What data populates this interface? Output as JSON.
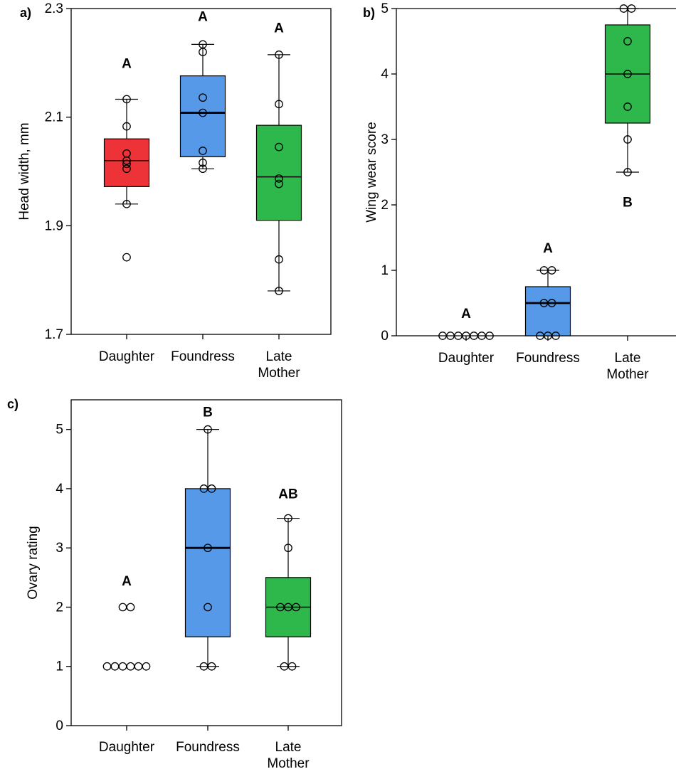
{
  "colors": {
    "daughter": "#ee3338",
    "foundress": "#5599e8",
    "late_mother": "#2eb84b"
  },
  "chart_data": [
    {
      "panel": "a)",
      "type": "boxplot",
      "ylabel": "Head width, mm",
      "ylim": [
        1.7,
        2.3
      ],
      "yticks": [
        "1.7",
        "1.9",
        "2.1",
        "2.3"
      ],
      "categories": [
        {
          "label": [
            "Daughter"
          ],
          "color": "#ee3338",
          "box": {
            "whisker_low": 1.94,
            "q1": 1.972,
            "median": 2.02,
            "q3": 2.06,
            "whisker_high": 2.133
          },
          "points": [
            1.842,
            1.94,
            2.005,
            2.014,
            2.02,
            2.033,
            2.083,
            2.133
          ],
          "letter": "A",
          "letter_value": 2.2
        },
        {
          "label": [
            "Foundress"
          ],
          "color": "#5599e8",
          "box": {
            "whisker_low": 2.005,
            "q1": 2.027,
            "median": 2.108,
            "q3": 2.176,
            "whisker_high": 2.234
          },
          "points": [
            2.005,
            2.016,
            2.038,
            2.108,
            2.136,
            2.22,
            2.234
          ],
          "letter": "A",
          "letter_value": 2.286
        },
        {
          "label": [
            "Late",
            "Mother"
          ],
          "color": "#2eb84b",
          "box": {
            "whisker_low": 1.78,
            "q1": 1.91,
            "median": 1.99,
            "q3": 2.085,
            "whisker_high": 2.215
          },
          "points": [
            1.78,
            1.838,
            1.977,
            1.987,
            2.045,
            2.124,
            2.215
          ],
          "letter": "A",
          "letter_value": 2.265
        }
      ]
    },
    {
      "panel": "b)",
      "type": "boxplot",
      "ylabel": "Wing wear score",
      "ylim": [
        0,
        5
      ],
      "yticks": [
        "0",
        "1",
        "2",
        "3",
        "4",
        "5"
      ],
      "categories": [
        {
          "label": [
            "Daughter"
          ],
          "color": "#ee3338",
          "box": null,
          "points": [
            0,
            0,
            0,
            0,
            0,
            0,
            0
          ],
          "letter": "A",
          "letter_value": 0.35
        },
        {
          "label": [
            "Foundress"
          ],
          "color": "#5599e8",
          "box": {
            "whisker_low": 0,
            "q1": 0,
            "median": 0.5,
            "q3": 0.75,
            "whisker_high": 1
          },
          "points": [
            0,
            0,
            0,
            0.5,
            0.5,
            1,
            1
          ],
          "letter": "A",
          "letter_value": 1.35
        },
        {
          "label": [
            "Late",
            "Mother"
          ],
          "color": "#2eb84b",
          "box": {
            "whisker_low": 2.5,
            "q1": 3.25,
            "median": 4,
            "q3": 4.75,
            "whisker_high": 5
          },
          "points": [
            2.5,
            3,
            3.5,
            4,
            4.5,
            5,
            5
          ],
          "letter": "B",
          "letter_value": 2.05
        }
      ]
    },
    {
      "panel": "c)",
      "type": "boxplot",
      "ylabel": "Ovary rating",
      "ylim": [
        0,
        5.5
      ],
      "yticks": [
        "0",
        "1",
        "2",
        "3",
        "4",
        "5"
      ],
      "categories": [
        {
          "label": [
            "Daughter"
          ],
          "color": "#ee3338",
          "box": null,
          "points": [
            1,
            1,
            1,
            1,
            1,
            1,
            2,
            2
          ],
          "letter": "A",
          "letter_value": 2.45
        },
        {
          "label": [
            "Foundress"
          ],
          "color": "#5599e8",
          "box": {
            "whisker_low": 1,
            "q1": 1.5,
            "median": 3,
            "q3": 4,
            "whisker_high": 5
          },
          "points": [
            1,
            1,
            2,
            3,
            4,
            4,
            5
          ],
          "letter": "B",
          "letter_value": 5.3
        },
        {
          "label": [
            "Late",
            "Mother"
          ],
          "color": "#2eb84b",
          "box": {
            "whisker_low": 1,
            "q1": 1.5,
            "median": 2,
            "q3": 2.5,
            "whisker_high": 3.5
          },
          "points": [
            1,
            1,
            2,
            2,
            2,
            3,
            3.5
          ],
          "letter": "AB",
          "letter_value": 3.92
        }
      ]
    }
  ]
}
